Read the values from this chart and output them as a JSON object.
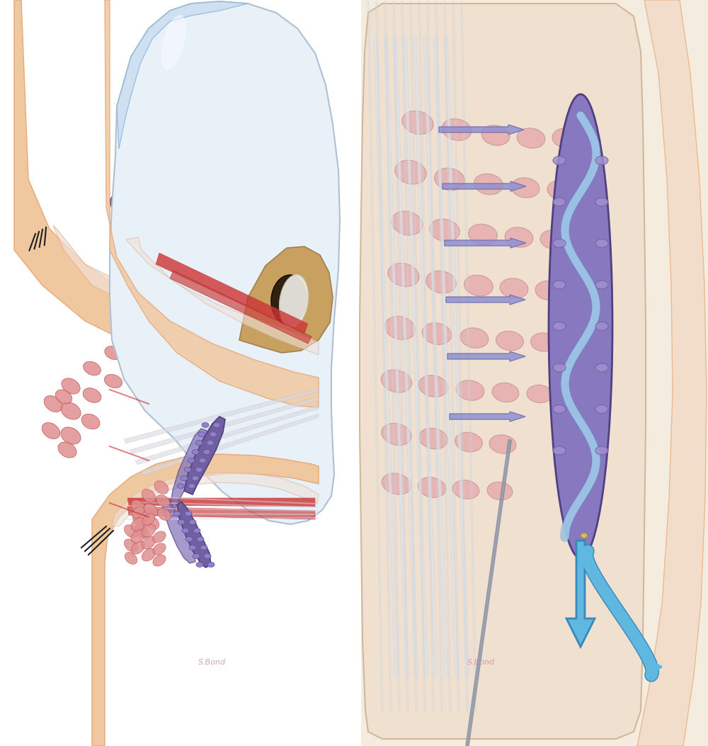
{
  "background_color": "#ffffff",
  "fig_width": 10.0,
  "fig_height": 10.53,
  "dpi": 100,
  "left_panel": {
    "skin_color": "#f0c8a0",
    "skin_dark": "#e8a878",
    "muscle_color": "#d46060",
    "muscle_dark": "#b84040",
    "gland_body_color": "#c87878",
    "gland_acini_color": "#e09090",
    "meibomian_color": "#7060a0",
    "meibomian_dark": "#504080",
    "duct_color": "#d0b0d0",
    "connective_color": "#e8d0c0",
    "lash_color": "#202020",
    "tarsal_color": "#f0e0d8"
  },
  "eye_panel": {
    "sclera_color": "#e8f0f8",
    "cornea_color": "#c8ddf0",
    "iris_color": "#c8a060",
    "pupil_color": "#302010",
    "conjunctiva_color": "#f0c0b8",
    "limbus_color": "#d0b090",
    "eyelid_color": "#e8a878",
    "vessel_color": "#cc3333",
    "tear_film": "#d8eef8",
    "muscle_red": "#cc4444"
  },
  "right_panel": {
    "background_color": "#f5ece0",
    "gland_fill": "#8878c0",
    "gland_outline": "#504080",
    "acini_color": "#c0a0d0",
    "duct_color": "#a0c8e8",
    "duct_outline": "#6090c0",
    "arrow_color": "#9090d0",
    "arrow_outline": "#7070b0",
    "muscle_pink": "#e8b0b0",
    "connective_cream": "#f0e0d0",
    "skin_outer": "#f0d8c0",
    "output_arrow_color": "#60b8e0",
    "output_arrow_outline": "#3888b8"
  },
  "signature": "S.Bond",
  "signature_color": "#cc88aa"
}
